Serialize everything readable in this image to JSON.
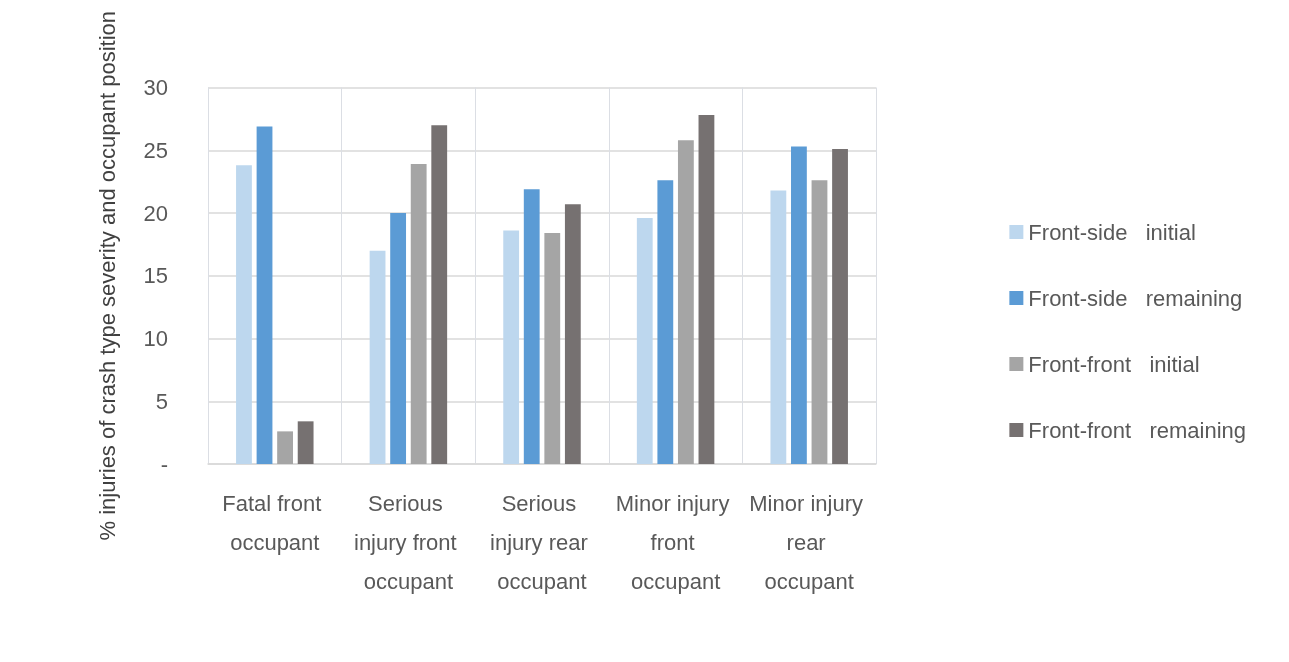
{
  "chart_data": {
    "type": "bar",
    "ylabel": "% injuries of crash type severity and occupant position",
    "categories": [
      "Fatal front occupant",
      "Serious injury front occupant",
      "Serious injury rear occupant",
      "Minor injury front occupant",
      "Minor injury rear occupant"
    ],
    "series": [
      {
        "name": "Front-side   initial",
        "color": "#bdd7ee",
        "values": [
          23.8,
          17.0,
          18.6,
          19.6,
          21.8
        ]
      },
      {
        "name": "Front-side   remaining",
        "color": "#5b9bd5",
        "values": [
          26.9,
          20.0,
          21.9,
          22.6,
          25.3
        ]
      },
      {
        "name": "Front-front   initial",
        "color": "#a5a5a5",
        "values": [
          2.6,
          23.9,
          18.4,
          25.8,
          22.6
        ]
      },
      {
        "name": "Front-front   remaining",
        "color": "#767171",
        "values": [
          3.4,
          27.0,
          20.7,
          27.8,
          25.1
        ]
      }
    ],
    "ylim": [
      0,
      30
    ],
    "yticks": [
      {
        "value": 0,
        "label": "-"
      },
      5,
      10,
      15,
      20,
      25,
      30
    ],
    "grid": true,
    "legend": "right"
  }
}
